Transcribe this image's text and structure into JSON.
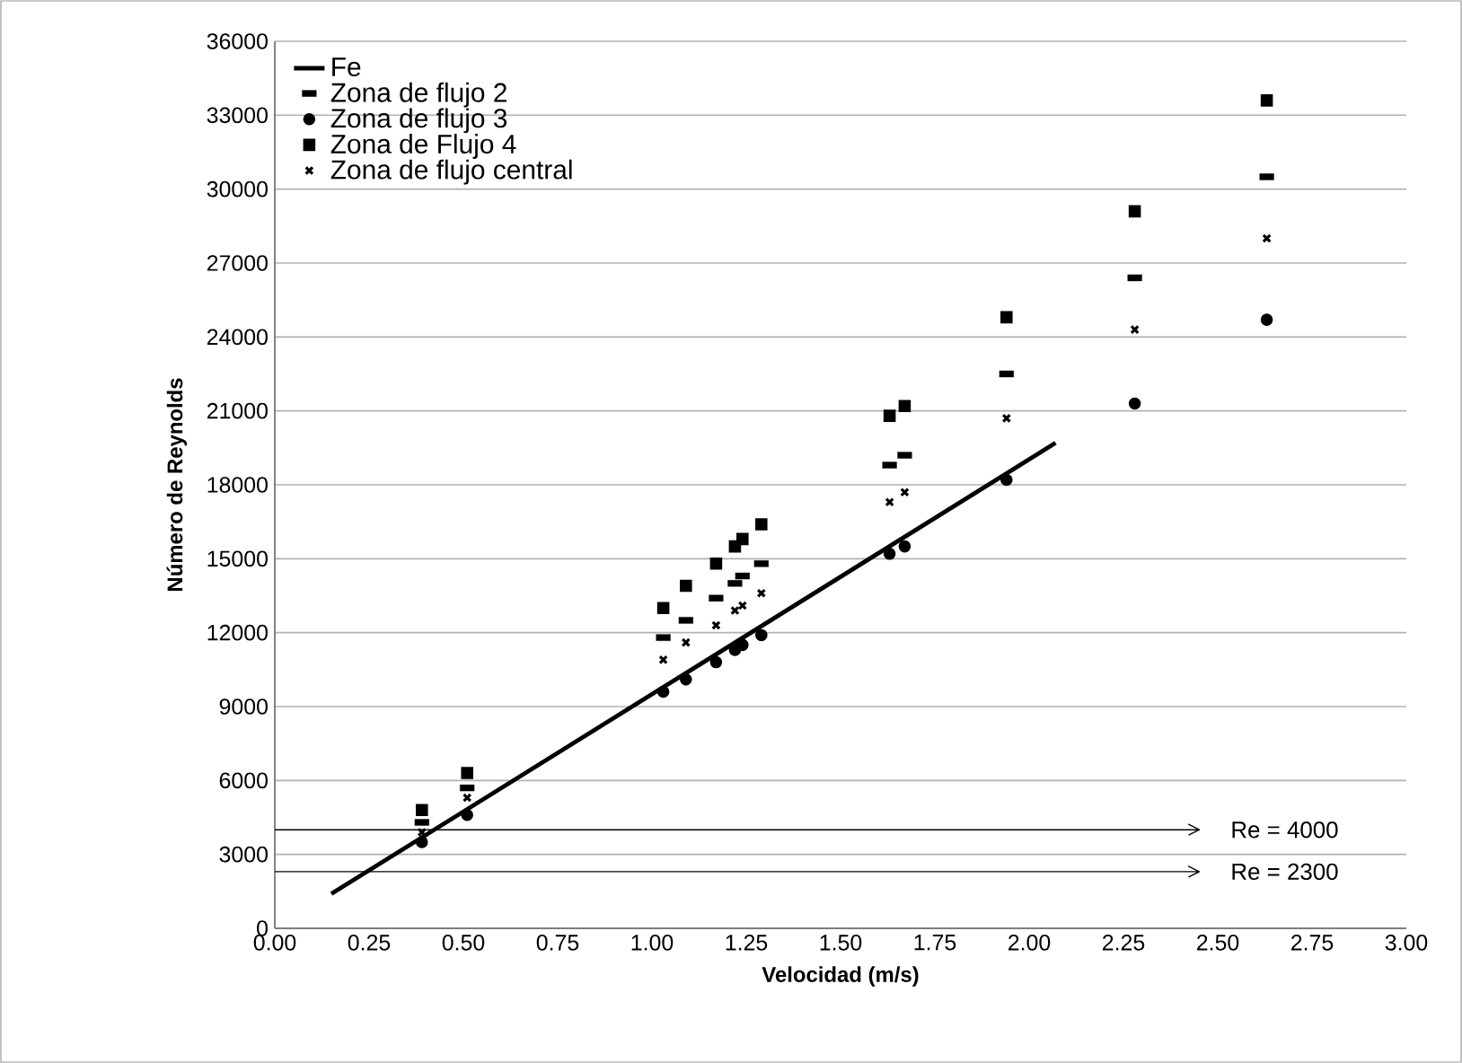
{
  "chart_data": {
    "type": "scatter",
    "xlabel": "Velocidad (m/s)",
    "ylabel": "Número de Reynolds",
    "xlim": [
      0,
      3
    ],
    "ylim": [
      0,
      36000
    ],
    "xticks": [
      {
        "value": 0,
        "label": "0.00"
      },
      {
        "value": 0.25,
        "label": "0.25"
      },
      {
        "value": 0.5,
        "label": "0.50"
      },
      {
        "value": 0.75,
        "label": "0.75"
      },
      {
        "value": 1,
        "label": "1.00"
      },
      {
        "value": 1.25,
        "label": "1.25"
      },
      {
        "value": 1.5,
        "label": "1.50"
      },
      {
        "value": 1.75,
        "label": "1.75"
      },
      {
        "value": 2,
        "label": "2.00"
      },
      {
        "value": 2.25,
        "label": "2.25"
      },
      {
        "value": 2.5,
        "label": "2.50"
      },
      {
        "value": 2.75,
        "label": "2.75"
      },
      {
        "value": 3,
        "label": "3.00"
      }
    ],
    "yticks": [
      0,
      3000,
      6000,
      9000,
      12000,
      15000,
      18000,
      21000,
      24000,
      27000,
      30000,
      33000,
      36000
    ],
    "grid": "y",
    "legend": "top left",
    "series": [
      {
        "name": "Fe",
        "type": "line",
        "marker": "none",
        "color": "#000000",
        "x": [
          0.15,
          2.07
        ],
        "values": [
          1400,
          19700
        ]
      },
      {
        "name": "Zona de flujo 2",
        "color": "#000000",
        "x": [
          0.39,
          0.51,
          1.03,
          1.09,
          1.17,
          1.22,
          1.24,
          1.29,
          1.63,
          1.67,
          1.94,
          2.28,
          2.63
        ],
        "values": [
          4300,
          5700,
          11800,
          12500,
          13400,
          14000,
          14300,
          14800,
          18800,
          19200,
          22500,
          26400,
          30500
        ]
      },
      {
        "name": "Zona de flujo 3",
        "marker": "circle",
        "color": "#000000",
        "x": [
          0.39,
          0.51,
          1.03,
          1.09,
          1.17,
          1.22,
          1.24,
          1.29,
          1.63,
          1.67,
          1.94,
          2.28,
          2.63
        ],
        "values": [
          3500,
          4600,
          9600,
          10100,
          10800,
          11300,
          11500,
          11900,
          15200,
          15500,
          18200,
          21300,
          24700
        ]
      },
      {
        "name": "Zona de Flujo 4",
        "marker": "square",
        "color": "#000000",
        "x": [
          0.39,
          0.51,
          1.03,
          1.09,
          1.17,
          1.22,
          1.24,
          1.29,
          1.63,
          1.67,
          1.94,
          2.28,
          2.63
        ],
        "values": [
          4800,
          6300,
          13000,
          13900,
          14800,
          15500,
          15800,
          16400,
          20800,
          21200,
          24800,
          29100,
          33600
        ]
      },
      {
        "name": "Zona de flujo central",
        "marker": "cross",
        "color": "#000000",
        "x": [
          0.39,
          0.51,
          1.03,
          1.09,
          1.17,
          1.22,
          1.24,
          1.29,
          1.63,
          1.67,
          1.94,
          2.28,
          2.63
        ],
        "values": [
          3900,
          5300,
          10900,
          11600,
          12300,
          12900,
          13100,
          13600,
          17300,
          17700,
          20700,
          24300,
          28000
        ]
      }
    ],
    "ref_lines": [
      {
        "axis": "y",
        "value": 4000,
        "label": "Re = 4000",
        "color": "#000000"
      },
      {
        "axis": "y",
        "value": 2300,
        "label": "Re = 2300",
        "color": "#000000"
      }
    ]
  }
}
